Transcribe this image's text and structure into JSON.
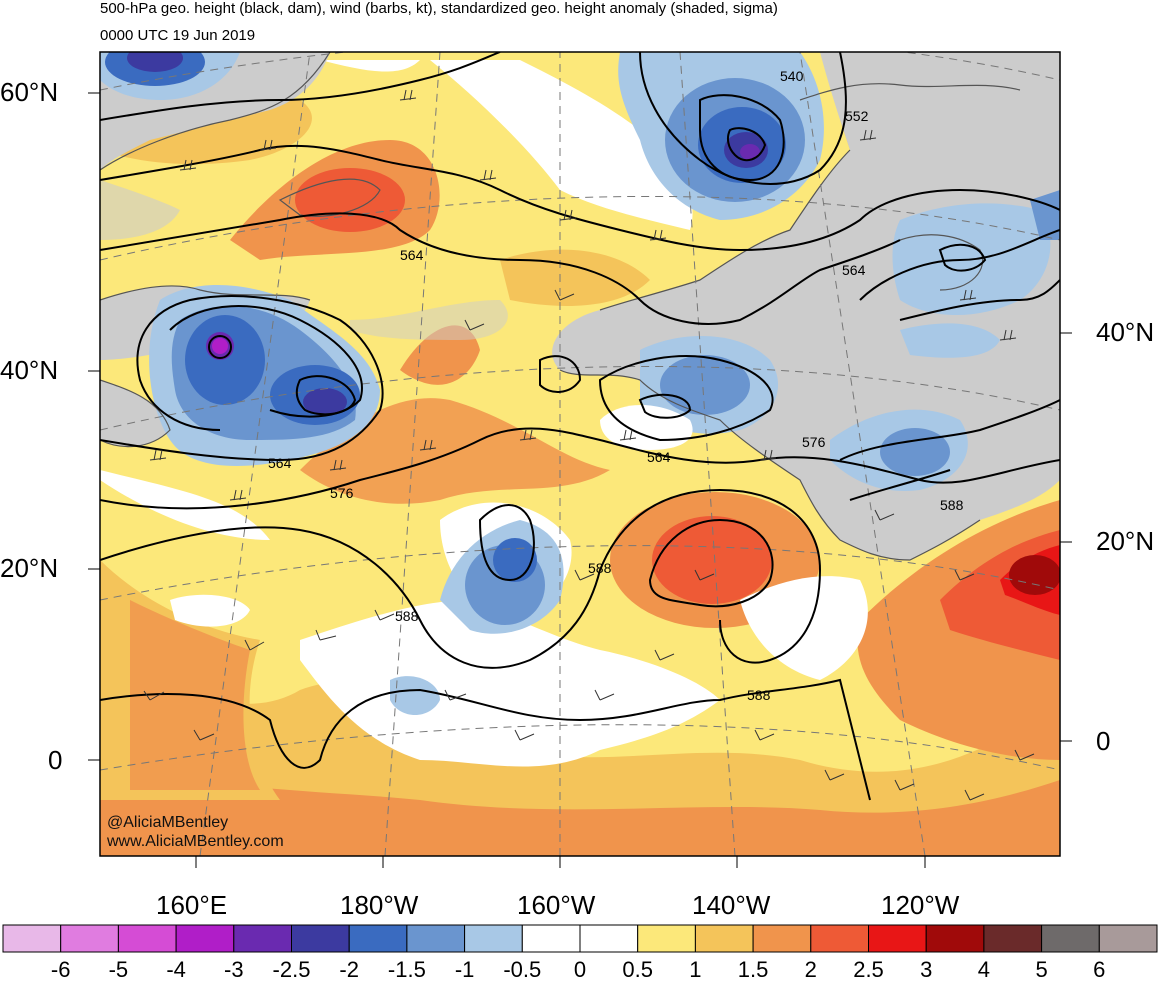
{
  "header": {
    "title": "500-hPa geo. height (black, dam), wind (barbs, kt), standardized geo. height anomaly (shaded, sigma)",
    "valid_time": "0000 UTC 19 Jun 2019"
  },
  "map": {
    "lat_labels_left": [
      "60°N",
      "40°N",
      "20°N",
      "0"
    ],
    "lat_labels_right": [
      "40°N",
      "20°N",
      "0"
    ],
    "lon_labels": [
      "160°E",
      "180°W",
      "160°W",
      "140°W",
      "120°W"
    ],
    "contour_labels": [
      "540",
      "552",
      "564",
      "564",
      "564",
      "564",
      "576",
      "576",
      "588",
      "588",
      "588",
      "588"
    ],
    "watermark_handle": "@AliciaMBentley",
    "watermark_url": "www.AliciaMBentley.com",
    "colors": {
      "land": "#cccccc",
      "coast": "#555555",
      "contour": "#000000"
    }
  },
  "colorbar": {
    "labels": [
      "-6",
      "-5",
      "-4",
      "-3",
      "-2.5",
      "-2",
      "-1.5",
      "-1",
      "-0.5",
      "0",
      "0.5",
      "1",
      "1.5",
      "2",
      "2.5",
      "3",
      "4",
      "5",
      "6"
    ],
    "colors": [
      "#e8b8e8",
      "#e07ce0",
      "#d54cd5",
      "#b01ec8",
      "#6a2ab0",
      "#3c3aa0",
      "#3a6bc0",
      "#6a95cf",
      "#a8c8e6",
      "#ffffff",
      "#ffffff",
      "#fce87a",
      "#f4c45a",
      "#f0944c",
      "#ee5a36",
      "#e81616",
      "#a00a0a",
      "#6a2a2a",
      "#6e6a6a",
      "#a89a9a"
    ]
  }
}
